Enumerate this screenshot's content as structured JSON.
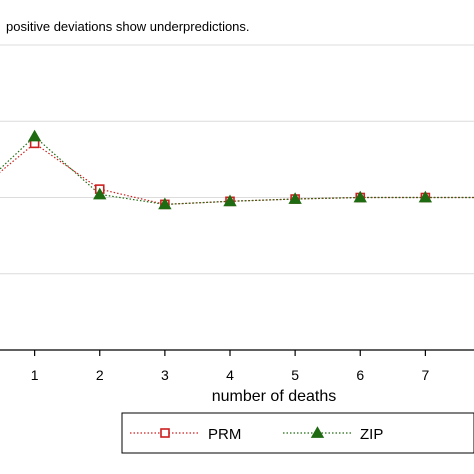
{
  "note": "positive deviations show underpredictions.",
  "chart_data": {
    "type": "line",
    "xlabel": "number of deaths",
    "ylabel": "",
    "x_ticks": [
      1,
      2,
      3,
      4,
      5,
      6,
      7
    ],
    "xlim": [
      0,
      8
    ],
    "ylim": [
      -0.1,
      0.1
    ],
    "grid": true,
    "legend": {
      "placement": "bottom",
      "entries": [
        "PRM",
        "ZIP"
      ]
    },
    "series": [
      {
        "name": "PRM",
        "color": "#cc1f1f",
        "marker": "hollow-square",
        "line_style": "dotted",
        "x": [
          0,
          1,
          2,
          3,
          4,
          5,
          6,
          7,
          8
        ],
        "values": [
          0.0,
          0.0355,
          0.0055,
          -0.0045,
          -0.0025,
          -0.001,
          0.0,
          0.0,
          0.0
        ]
      },
      {
        "name": "ZIP",
        "color": "#1f6b12",
        "marker": "filled-triangle",
        "line_style": "dotted",
        "x": [
          0,
          1,
          2,
          3,
          4,
          5,
          6,
          7,
          8
        ],
        "values": [
          0.0,
          0.04,
          0.002,
          -0.0045,
          -0.0025,
          -0.001,
          0.0,
          0.0,
          0.0
        ]
      }
    ]
  }
}
